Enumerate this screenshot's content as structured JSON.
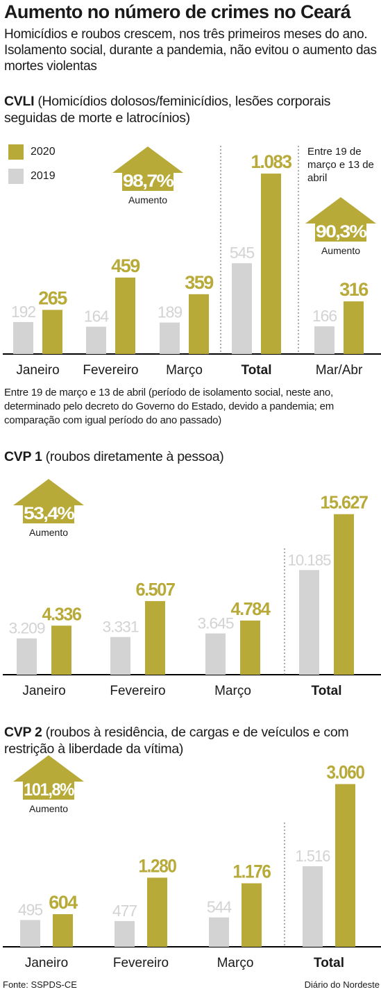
{
  "header": {
    "title": "Aumento no número de crimes no Ceará",
    "subtitle": "Homicídios e roubos crescem, nos três primeiros meses do ano. Isolamento social, durante a pandemia, não evitou o aumento das mortes violentas"
  },
  "legend": {
    "label_2020": "2020",
    "label_2019": "2019"
  },
  "colors": {
    "c2020": "#b8aa38",
    "c2019": "#d3d3d3",
    "axis": "#000000"
  },
  "chart_data": [
    {
      "type": "bar",
      "title_bold": "CVLI",
      "title_rest": " (Homicídios dolosos/feminicídios, lesões corporais seguidas de morte e latrocínios)",
      "categories": [
        "Janeiro",
        "Fevereiro",
        "Março",
        "Total",
        "Mar/Abr"
      ],
      "series": [
        {
          "name": "2019",
          "values": [
            192,
            164,
            189,
            545,
            166
          ],
          "labels": [
            "192",
            "164",
            "189",
            "545",
            "166"
          ]
        },
        {
          "name": "2020",
          "values": [
            265,
            459,
            359,
            1083,
            316
          ],
          "labels": [
            "265",
            "459",
            "359",
            "1.083",
            "316"
          ]
        }
      ],
      "annotations": [
        {
          "value": "98,7%",
          "label": "Aumento"
        },
        {
          "value": "90,3%",
          "label": "Aumento"
        }
      ],
      "side_note": "Entre 19 de março e 13 de abril"
    },
    {
      "type": "bar",
      "title_bold": "CVP 1",
      "title_rest": " (roubos diretamente à pessoa)",
      "categories": [
        "Janeiro",
        "Fevereiro",
        "Março",
        "Total"
      ],
      "series": [
        {
          "name": "2019",
          "values": [
            3209,
            3331,
            3645,
            10185
          ],
          "labels": [
            "3.209",
            "3.331",
            "3.645",
            "10.185"
          ]
        },
        {
          "name": "2020",
          "values": [
            4336,
            6507,
            4784,
            15627
          ],
          "labels": [
            "4.336",
            "6.507",
            "4.784",
            "15.627"
          ]
        }
      ],
      "annotations": [
        {
          "value": "53,4%",
          "label": "Aumento"
        }
      ]
    },
    {
      "type": "bar",
      "title_bold": "CVP 2",
      "title_rest": " (roubos à residência, de cargas e de veículos e com restrição à liberdade da vítima)",
      "categories": [
        "Janeiro",
        "Fevereiro",
        "Março",
        "Total"
      ],
      "series": [
        {
          "name": "2019",
          "values": [
            495,
            477,
            544,
            1516
          ],
          "labels": [
            "495",
            "477",
            "544",
            "1.516"
          ]
        },
        {
          "name": "2020",
          "values": [
            604,
            1280,
            1176,
            3060
          ],
          "labels": [
            "604",
            "1.280",
            "1.176",
            "3.060"
          ]
        }
      ],
      "annotations": [
        {
          "value": "101,8%",
          "label": "Aumento"
        }
      ]
    }
  ],
  "note": "Entre 19 de março e 13 de abril (período de isolamento social, neste ano, determinado pelo decreto do Governo do Estado, devido a pandemia; em comparação com igual período do ano passado)",
  "footer": {
    "source": "Fonte: SSPDS-CE",
    "publisher": "Diário do Nordeste"
  }
}
